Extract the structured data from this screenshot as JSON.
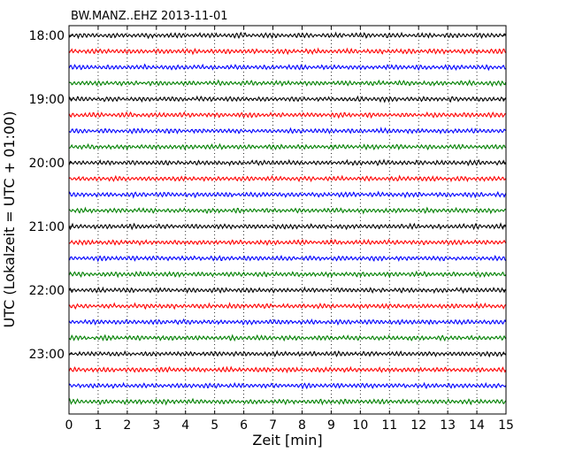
{
  "chart_data": {
    "type": "line",
    "title": "BW.MANZ..EHZ 2013-11-01",
    "xlabel": "Zeit  [min]",
    "ylabel": "UTC (Lokalzeit = UTC + 01:00)",
    "xlim": [
      0,
      15
    ],
    "x_ticks": [
      "0",
      "1",
      "2",
      "3",
      "4",
      "5",
      "6",
      "7",
      "8",
      "9",
      "10",
      "11",
      "12",
      "13",
      "14",
      "15"
    ],
    "y_ticks": [
      "18:00",
      "19:00",
      "20:00",
      "21:00",
      "22:00",
      "23:00"
    ],
    "grid": "vertical dotted",
    "colors": [
      "#000000",
      "#ff0000",
      "#0000ff",
      "#008000"
    ],
    "traces": [
      {
        "start": "18:00",
        "color": "#000000"
      },
      {
        "start": "18:15",
        "color": "#ff0000"
      },
      {
        "start": "18:30",
        "color": "#0000ff"
      },
      {
        "start": "18:45",
        "color": "#008000"
      },
      {
        "start": "19:00",
        "color": "#000000"
      },
      {
        "start": "19:15",
        "color": "#ff0000"
      },
      {
        "start": "19:30",
        "color": "#0000ff"
      },
      {
        "start": "19:45",
        "color": "#008000"
      },
      {
        "start": "20:00",
        "color": "#000000"
      },
      {
        "start": "20:15",
        "color": "#ff0000"
      },
      {
        "start": "20:30",
        "color": "#0000ff"
      },
      {
        "start": "20:45",
        "color": "#008000"
      },
      {
        "start": "21:00",
        "color": "#000000"
      },
      {
        "start": "21:15",
        "color": "#ff0000"
      },
      {
        "start": "21:30",
        "color": "#0000ff"
      },
      {
        "start": "21:45",
        "color": "#008000"
      },
      {
        "start": "22:00",
        "color": "#000000"
      },
      {
        "start": "22:15",
        "color": "#ff0000"
      },
      {
        "start": "22:30",
        "color": "#0000ff"
      },
      {
        "start": "22:45",
        "color": "#008000"
      },
      {
        "start": "23:00",
        "color": "#000000"
      },
      {
        "start": "23:15",
        "color": "#ff0000"
      },
      {
        "start": "23:30",
        "color": "#0000ff"
      },
      {
        "start": "23:45",
        "color": "#008000"
      }
    ]
  }
}
